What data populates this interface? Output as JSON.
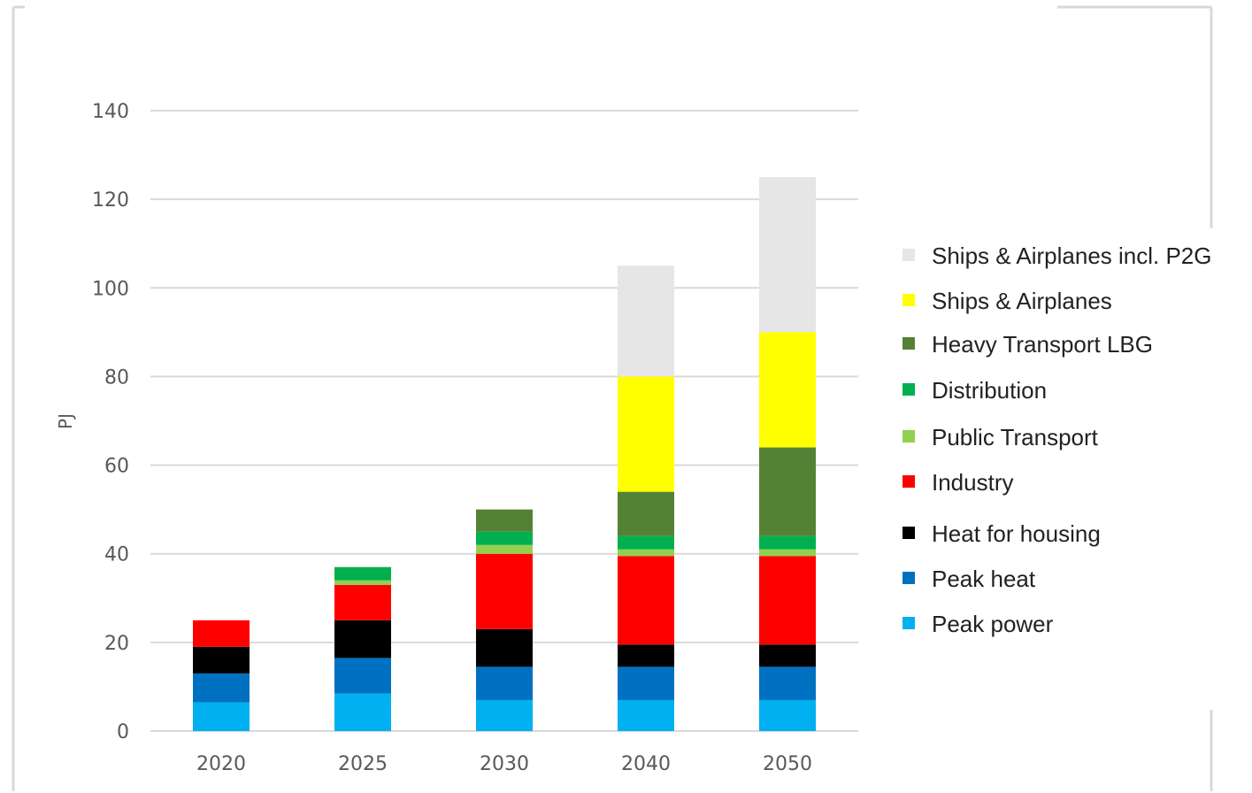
{
  "chart_data": {
    "type": "bar",
    "stacked": true,
    "categories": [
      "2020",
      "2025",
      "2030",
      "2040",
      "2050"
    ],
    "ylabel": "PJ",
    "ylim": [
      0,
      140
    ],
    "yticks": [
      0,
      20,
      40,
      60,
      80,
      100,
      120,
      140
    ],
    "grid": true,
    "legend_position": "right",
    "series": [
      {
        "name": "Peak power",
        "color": "#00B0F0",
        "values": [
          6.5,
          8.5,
          7,
          7,
          7
        ]
      },
      {
        "name": "Peak heat",
        "color": "#0070C0",
        "values": [
          6.5,
          8,
          7.5,
          7.5,
          7.5
        ]
      },
      {
        "name": "Heat for housing",
        "color": "#000000",
        "values": [
          6,
          8.5,
          8.5,
          5,
          5
        ]
      },
      {
        "name": "Industry",
        "color": "#FF0000",
        "values": [
          6,
          8,
          17,
          20,
          20
        ]
      },
      {
        "name": "Public Transport",
        "color": "#92D050",
        "values": [
          0,
          1,
          2,
          1.5,
          1.5
        ]
      },
      {
        "name": "Distribution",
        "color": "#00B050",
        "values": [
          0,
          3,
          3,
          3,
          3
        ]
      },
      {
        "name": "Heavy Transport LBG",
        "color": "#548235",
        "values": [
          0,
          0,
          5,
          10,
          20
        ]
      },
      {
        "name": "Ships & Airplanes",
        "color": "#FFFF00",
        "values": [
          0,
          0,
          0,
          26,
          26
        ]
      },
      {
        "name": "Ships & Airplanes incl. P2G",
        "color": "#E7E6E6",
        "values": [
          0,
          0,
          0,
          25,
          35
        ]
      }
    ]
  }
}
